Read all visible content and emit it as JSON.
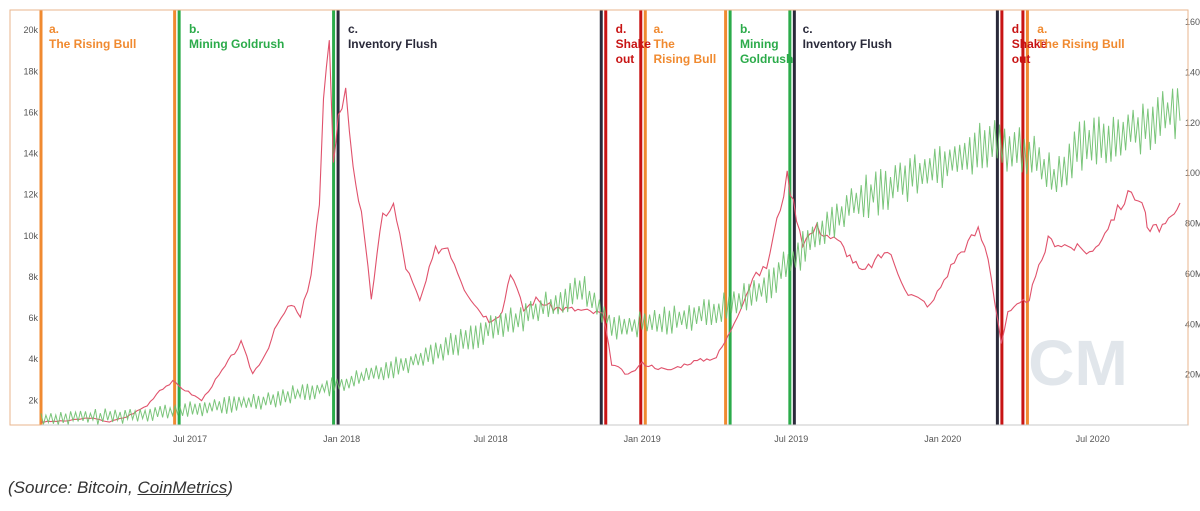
{
  "colors": {
    "price_line": "#e0526c",
    "hashrate_line": "#6cbf6c",
    "rising_bull": "#f08a30",
    "mining_goldrush": "#2bab4a",
    "inventory_flush": "#2a2a3a",
    "shake_out": "#c81414",
    "watermark": "#c9d2dc",
    "chart_border": "#e9b68e"
  },
  "watermark_text": "CM",
  "caption": {
    "open": "(Source: Bitcoin, ",
    "link": "CoinMetrics",
    "close": ")"
  },
  "chart_data": {
    "type": "line",
    "x_ticks": [
      "Jul 2017",
      "Jan 2018",
      "Jul 2018",
      "Jan 2019",
      "Jul 2019",
      "Jan 2020",
      "Jul 2020"
    ],
    "y_left_ticks": [
      "2k",
      "4k",
      "6k",
      "8k",
      "10k",
      "12k",
      "14k",
      "16k",
      "18k",
      "20k"
    ],
    "y_left_range": [
      800,
      20400
    ],
    "y_right_ticks": [
      "20M",
      "40M",
      "60M",
      "80M",
      "100",
      "120",
      "140",
      "160"
    ],
    "y_right_range": [
      0,
      160
    ],
    "x_range": [
      "2017-01-01",
      "2020-10-15"
    ],
    "series": [
      {
        "key": "price",
        "axis": "left",
        "points": [
          [
            "2017-01-01",
            950
          ],
          [
            "2017-02-01",
            1000
          ],
          [
            "2017-03-01",
            1150
          ],
          [
            "2017-03-25",
            950
          ],
          [
            "2017-04-15",
            1200
          ],
          [
            "2017-05-10",
            1750
          ],
          [
            "2017-05-25",
            2500
          ],
          [
            "2017-06-10",
            2900
          ],
          [
            "2017-06-25",
            2500
          ],
          [
            "2017-07-15",
            2000
          ],
          [
            "2017-08-05",
            3200
          ],
          [
            "2017-08-20",
            4100
          ],
          [
            "2017-09-01",
            4800
          ],
          [
            "2017-09-15",
            3300
          ],
          [
            "2017-10-01",
            4300
          ],
          [
            "2017-10-15",
            5700
          ],
          [
            "2017-11-01",
            6700
          ],
          [
            "2017-11-12",
            6000
          ],
          [
            "2017-11-25",
            8200
          ],
          [
            "2017-12-05",
            11500
          ],
          [
            "2017-12-10",
            16500
          ],
          [
            "2017-12-17",
            19200
          ],
          [
            "2017-12-22",
            13800
          ],
          [
            "2017-12-28",
            15800
          ],
          [
            "2018-01-06",
            17000
          ],
          [
            "2018-01-15",
            13500
          ],
          [
            "2018-01-25",
            11000
          ],
          [
            "2018-02-06",
            7000
          ],
          [
            "2018-02-20",
            11000
          ],
          [
            "2018-03-05",
            11500
          ],
          [
            "2018-03-20",
            8500
          ],
          [
            "2018-04-06",
            6800
          ],
          [
            "2018-04-25",
            9300
          ],
          [
            "2018-05-10",
            9500
          ],
          [
            "2018-05-30",
            7500
          ],
          [
            "2018-06-15",
            6500
          ],
          [
            "2018-06-29",
            5900
          ],
          [
            "2018-07-15",
            6300
          ],
          [
            "2018-07-25",
            8300
          ],
          [
            "2018-08-10",
            6400
          ],
          [
            "2018-08-25",
            6900
          ],
          [
            "2018-09-15",
            6500
          ],
          [
            "2018-10-15",
            6400
          ],
          [
            "2018-11-14",
            6200
          ],
          [
            "2018-11-25",
            3800
          ],
          [
            "2018-12-15",
            3200
          ],
          [
            "2019-01-01",
            3800
          ],
          [
            "2019-02-01",
            3450
          ],
          [
            "2019-03-01",
            3850
          ],
          [
            "2019-04-01",
            4100
          ],
          [
            "2019-04-15",
            5100
          ],
          [
            "2019-05-15",
            7900
          ],
          [
            "2019-06-01",
            8500
          ],
          [
            "2019-06-26",
            12900
          ],
          [
            "2019-07-15",
            9700
          ],
          [
            "2019-08-01",
            10400
          ],
          [
            "2019-08-30",
            9600
          ],
          [
            "2019-09-25",
            8200
          ],
          [
            "2019-10-26",
            9300
          ],
          [
            "2019-11-20",
            7200
          ],
          [
            "2019-12-17",
            6600
          ],
          [
            "2020-01-15",
            8800
          ],
          [
            "2020-02-13",
            10300
          ],
          [
            "2020-02-25",
            9000
          ],
          [
            "2020-03-12",
            4800
          ],
          [
            "2020-03-20",
            6200
          ],
          [
            "2020-04-15",
            7000
          ],
          [
            "2020-05-08",
            9800
          ],
          [
            "2020-06-01",
            9500
          ],
          [
            "2020-07-01",
            9200
          ],
          [
            "2020-07-27",
            11000
          ],
          [
            "2020-08-17",
            12200
          ],
          [
            "2020-09-03",
            11300
          ],
          [
            "2020-09-05",
            10200
          ],
          [
            "2020-10-01",
            10600
          ],
          [
            "2020-10-15",
            11400
          ]
        ]
      },
      {
        "key": "hashrate",
        "axis": "right",
        "noise": 3,
        "points": [
          [
            "2017-01-01",
            2.5
          ],
          [
            "2017-04-01",
            3.5
          ],
          [
            "2017-07-01",
            6
          ],
          [
            "2017-10-01",
            10
          ],
          [
            "2018-01-01",
            16
          ],
          [
            "2018-04-01",
            26
          ],
          [
            "2018-07-01",
            38
          ],
          [
            "2018-09-15",
            48
          ],
          [
            "2018-10-20",
            54
          ],
          [
            "2018-12-01",
            38
          ],
          [
            "2019-01-01",
            40
          ],
          [
            "2019-04-01",
            45
          ],
          [
            "2019-06-01",
            55
          ],
          [
            "2019-07-15",
            70
          ],
          [
            "2019-09-15",
            88
          ],
          [
            "2019-12-01",
            100
          ],
          [
            "2020-03-01",
            112
          ],
          [
            "2020-04-15",
            108
          ],
          [
            "2020-05-15",
            98
          ],
          [
            "2020-06-15",
            110
          ],
          [
            "2020-08-01",
            115
          ],
          [
            "2020-10-15",
            125
          ]
        ]
      }
    ],
    "phases": [
      {
        "letter": "a.",
        "name": "The Rising Bull",
        "kind": "rising_bull",
        "start": "2017-01-01",
        "end": "2017-06-15"
      },
      {
        "letter": "b.",
        "name": "Mining Goldrush",
        "kind": "mining_goldrush",
        "start": "2017-06-20",
        "end": "2017-12-20"
      },
      {
        "letter": "c.",
        "name": "Inventory Flush",
        "kind": "inventory_flush",
        "start": "2017-12-30",
        "end": "2018-11-10"
      },
      {
        "letter": "d.",
        "name": "Shake out",
        "kind": "shake_out",
        "start": "2018-11-20",
        "end": "2018-12-31"
      },
      {
        "letter": "a.",
        "name": "The Rising Bull",
        "kind": "rising_bull",
        "start": "2019-01-05",
        "end": "2019-04-10"
      },
      {
        "letter": "b.",
        "name": "Mining Goldrush",
        "kind": "mining_goldrush",
        "start": "2019-04-20",
        "end": "2019-06-30"
      },
      {
        "letter": "c.",
        "name": "Inventory Flush",
        "kind": "inventory_flush",
        "start": "2019-07-05",
        "end": "2020-03-08"
      },
      {
        "letter": "d.",
        "name": "Shake out",
        "kind": "shake_out",
        "start": "2020-03-15",
        "end": "2020-04-05"
      },
      {
        "letter": "a.",
        "name": "The Rising Bull",
        "kind": "rising_bull",
        "start": "2020-04-15",
        "end": "2020-10-15"
      }
    ],
    "phase_boundaries": [
      {
        "date": "2017-01-01",
        "kinds": [
          "rising_bull"
        ]
      },
      {
        "date": "2017-06-15",
        "kinds": [
          "rising_bull",
          "mining_goldrush"
        ]
      },
      {
        "date": "2017-12-25",
        "kinds": [
          "mining_goldrush",
          "inventory_flush"
        ]
      },
      {
        "date": "2018-11-15",
        "kinds": [
          "inventory_flush",
          "shake_out"
        ]
      },
      {
        "date": "2019-01-02",
        "kinds": [
          "shake_out",
          "rising_bull"
        ]
      },
      {
        "date": "2019-04-15",
        "kinds": [
          "rising_bull",
          "mining_goldrush"
        ]
      },
      {
        "date": "2019-07-02",
        "kinds": [
          "mining_goldrush",
          "inventory_flush"
        ]
      },
      {
        "date": "2020-03-10",
        "kinds": [
          "inventory_flush",
          "shake_out"
        ]
      },
      {
        "date": "2020-04-10",
        "kinds": [
          "shake_out",
          "rising_bull"
        ]
      }
    ]
  }
}
